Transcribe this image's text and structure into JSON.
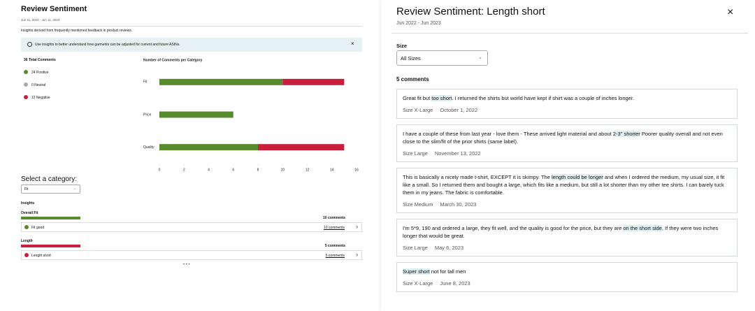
{
  "left": {
    "title": "Review Sentiment",
    "date_range": "Jun 11, 2022 - Jun 11, 2023",
    "description": "Insights derived from frequently mentioned feedback in product reviews.",
    "banner": "Use insights to better understand how garments can be adjusted for current and future ASINs.",
    "summary": {
      "total": "36 Total Comments",
      "items": [
        "24 Positive",
        "0 Neutral",
        "12 Negative"
      ]
    },
    "select_label": "Select a category:",
    "selected": "Fit",
    "insights_label": "Insights",
    "groups": [
      {
        "name": "Overall Fit",
        "count": "10 comments",
        "rows": [
          {
            "label": "Fit good",
            "count": "10 comments"
          }
        ]
      },
      {
        "name": "Length",
        "count": "5 comments",
        "rows": [
          {
            "label": "Length short",
            "count": "5 comments"
          }
        ]
      }
    ]
  },
  "chart_data": {
    "type": "bar",
    "orientation": "horizontal",
    "stacked": true,
    "title": "Number of Comments per Category",
    "categories": [
      "Fit",
      "Price",
      "Quality"
    ],
    "series": [
      {
        "color": "#5a8a2e",
        "values": [
          10,
          6,
          8
        ]
      },
      {
        "color": "#c8203c",
        "values": [
          5,
          0,
          7
        ]
      }
    ],
    "xlim": [
      0,
      16
    ],
    "xticks": [
      0,
      2,
      4,
      6,
      8,
      10,
      12,
      14,
      16
    ]
  },
  "right": {
    "title": "Review Sentiment: Length short",
    "date_range": "Jun 2022 - Jun 2023",
    "size_label": "Size",
    "size_selected": "All Sizes",
    "count": "5 comments",
    "comments": [
      {
        "segments": [
          {
            "text": "Great fit but "
          },
          {
            "text": "too short",
            "highlight": true
          },
          {
            "text": ". I returned the shirts but world have kept if shirt was a couple of inches longer."
          }
        ],
        "size": "Size X-Large",
        "date": "October 1, 2022"
      },
      {
        "segments": [
          {
            "text": "I have a couple of these from last year - love them - These arrived light material and about "
          },
          {
            "text": "2-3\" shorter",
            "highlight": true
          },
          {
            "text": " Poorer quality overall and not even close to the slim/fit of the prior shirts (same label)."
          }
        ],
        "size": "Size Large",
        "date": "November 13, 2022"
      },
      {
        "segments": [
          {
            "text": "This is basically a nicely made t-shirt, EXCEPT it is skimpy. The "
          },
          {
            "text": "length could be longer",
            "highlight": true
          },
          {
            "text": " and when I ordered the medium, my usual size, it fit like a small. So I returned them and bought a large, which fits like a medium, but still a lot shorter than my other tee shirts. I can barely tuck them in my jeans. The fabric is comfortable."
          }
        ],
        "size": "Size Medium",
        "date": "March 30, 2023"
      },
      {
        "segments": [
          {
            "text": "I'm 5*9, 190 and ordered a large, they fit well, and the quality is good for the price, but they are "
          },
          {
            "text": "on the short side",
            "highlight": true
          },
          {
            "text": ", If they were two inches longer that would be great."
          }
        ],
        "size": "Size Large",
        "date": "May 6, 2023"
      },
      {
        "segments": [
          {
            "text": "Super short",
            "highlight": true
          },
          {
            "text": " not for tall men"
          }
        ],
        "size": "Size X-Large",
        "date": "June 8, 2023"
      }
    ]
  }
}
